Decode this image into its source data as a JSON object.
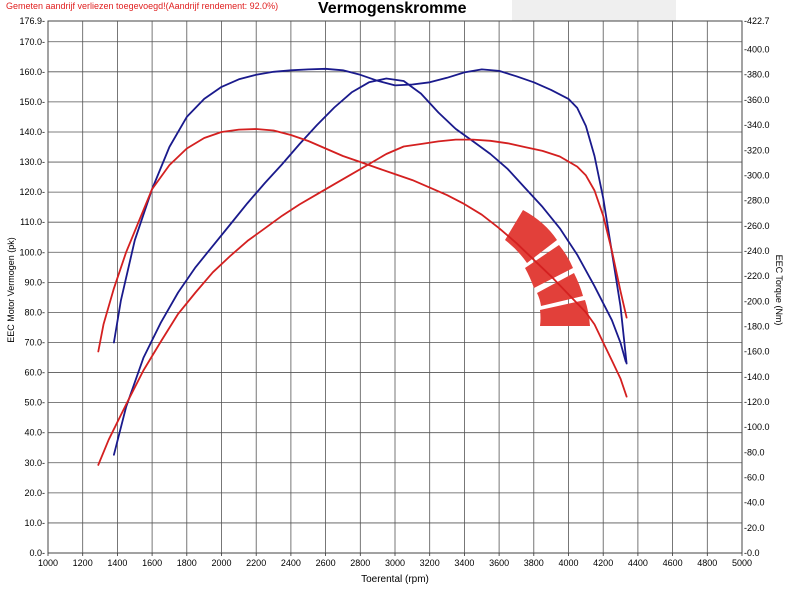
{
  "notice": "Gemeten aandrijf verliezen toegevoegd!(Aandrijf rendement: 92.0%)",
  "chart_data": {
    "type": "line",
    "title": "Vermogenskromme",
    "xlabel": "Toerental (rpm)",
    "ylabel_left": "EEC Motor Vermogen (pk)",
    "ylabel_right": "EEC Torque (Nm)",
    "xlim": [
      1000,
      5000
    ],
    "ylim_left": [
      0,
      176.9
    ],
    "ylim_right": [
      0,
      422.7
    ],
    "x_ticks": [
      "1000",
      "1200",
      "1400",
      "1600",
      "1800",
      "2000",
      "2200",
      "2400",
      "2600",
      "2800",
      "3000",
      "3200",
      "3400",
      "3600",
      "3800",
      "4000",
      "4200",
      "4400",
      "4600",
      "4800",
      "5000"
    ],
    "y_left_ticks": [
      "0.0",
      "10.0",
      "20.0",
      "30.0",
      "40.0",
      "50.0",
      "60.0",
      "70.0",
      "80.0",
      "90.0",
      "100.0",
      "110.0",
      "120.0",
      "130.0",
      "140.0",
      "150.0",
      "160.0",
      "170.0",
      "176.9"
    ],
    "y_right_ticks": [
      "0.0",
      "20.0",
      "40.0",
      "60.0",
      "80.0",
      "100.0",
      "120.0",
      "140.0",
      "160.0",
      "180.0",
      "200.0",
      "220.0",
      "240.0",
      "260.0",
      "280.0",
      "300.0",
      "320.0",
      "340.0",
      "360.0",
      "380.0",
      "400.0",
      "422.7"
    ],
    "grid": true,
    "colors": {
      "tuned": "#1a1a8c",
      "stock": "#d42020",
      "logo": "#e2403a"
    },
    "series": [
      {
        "axis": "left",
        "color": "#1a1a8c",
        "x": [
          1380,
          1420,
          1500,
          1600,
          1700,
          1800,
          1900,
          2000,
          2100,
          2200,
          2300,
          2400,
          2500,
          2600,
          2700,
          2800,
          2900,
          3000,
          3100,
          3200,
          3300,
          3400,
          3500,
          3600,
          3700,
          3800,
          3900,
          4000,
          4050,
          4100,
          4150,
          4200,
          4250,
          4300,
          4335
        ],
        "values": [
          70,
          84,
          104,
          121,
          135,
          145,
          151,
          155,
          157.5,
          159,
          160,
          160.5,
          160.8,
          161,
          160.5,
          159,
          157,
          155.5,
          155.8,
          156.5,
          158,
          159.8,
          160.8,
          160.3,
          158.5,
          156.5,
          154,
          151,
          148,
          142,
          132,
          118,
          100,
          82,
          63
        ]
      },
      {
        "axis": "right",
        "color": "#1a1a8c",
        "x": [
          1380,
          1450,
          1550,
          1650,
          1750,
          1850,
          1950,
          2050,
          2150,
          2250,
          2350,
          2450,
          2550,
          2650,
          2750,
          2850,
          2950,
          3050,
          3150,
          3250,
          3350,
          3450,
          3550,
          3650,
          3750,
          3850,
          3950,
          4050,
          4150,
          4250,
          4300,
          4330
        ],
        "values": [
          78,
          116,
          155,
          183,
          207,
          227,
          244,
          261,
          278,
          294,
          309,
          325,
          340,
          354,
          366,
          374,
          377,
          375,
          365,
          350,
          337,
          327,
          317,
          305,
          290,
          275,
          258,
          237,
          212,
          185,
          167,
          152
        ]
      },
      {
        "axis": "left",
        "color": "#d42020",
        "x": [
          1290,
          1320,
          1380,
          1450,
          1550,
          1600,
          1700,
          1800,
          1900,
          2000,
          2100,
          2200,
          2300,
          2400,
          2500,
          2600,
          2700,
          2800,
          2900,
          3000,
          3100,
          3200,
          3300,
          3400,
          3500,
          3600,
          3700,
          3800,
          3900,
          4000,
          4100,
          4150,
          4200,
          4250,
          4300,
          4335
        ],
        "values": [
          67,
          76,
          88,
          100,
          114,
          121,
          129,
          134.5,
          138,
          140,
          140.8,
          141,
          140.5,
          139,
          137,
          134.5,
          132,
          130,
          128,
          126,
          124,
          121.5,
          119,
          116,
          112.5,
          108,
          103,
          97.5,
          92,
          86,
          80,
          76,
          70,
          64,
          58,
          52
        ]
      },
      {
        "axis": "right",
        "color": "#d42020",
        "x": [
          1290,
          1350,
          1450,
          1550,
          1650,
          1750,
          1850,
          1950,
          2050,
          2150,
          2250,
          2350,
          2450,
          2550,
          2650,
          2750,
          2850,
          2950,
          3050,
          3150,
          3250,
          3350,
          3450,
          3550,
          3650,
          3750,
          3850,
          3950,
          4050,
          4100,
          4150,
          4200,
          4250,
          4300,
          4335
        ],
        "values": [
          70,
          90,
          118,
          145,
          168,
          190,
          207,
          223,
          236,
          248,
          258,
          268,
          277,
          285,
          293,
          301,
          309,
          317,
          323,
          325,
          327,
          328.5,
          328.5,
          327.5,
          325.5,
          322.5,
          319.5,
          315,
          307,
          300,
          288,
          268,
          240,
          208,
          187
        ]
      }
    ]
  }
}
